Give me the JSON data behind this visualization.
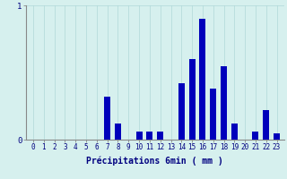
{
  "categories": [
    0,
    1,
    2,
    3,
    4,
    5,
    6,
    7,
    8,
    9,
    10,
    11,
    12,
    13,
    14,
    15,
    16,
    17,
    18,
    19,
    20,
    21,
    22,
    23
  ],
  "values": [
    0.0,
    0.0,
    0.0,
    0.0,
    0.0,
    0.0,
    0.0,
    0.32,
    0.12,
    0.0,
    0.06,
    0.06,
    0.06,
    0.0,
    0.42,
    0.6,
    0.9,
    0.38,
    0.55,
    0.12,
    0.0,
    0.06,
    0.22,
    0.05
  ],
  "bar_color": "#0000bb",
  "background_color": "#d6f0ee",
  "xlabel": "Précipitations 6min ( mm )",
  "xlabel_fontsize": 7,
  "ylim": [
    0,
    1.0
  ],
  "yticks": [
    0,
    1
  ],
  "ytick_labels": [
    "0",
    "1"
  ],
  "grid_color": "#b0d8d8",
  "axis_color": "#888888",
  "text_color": "#000080",
  "tick_fontsize": 5.5
}
